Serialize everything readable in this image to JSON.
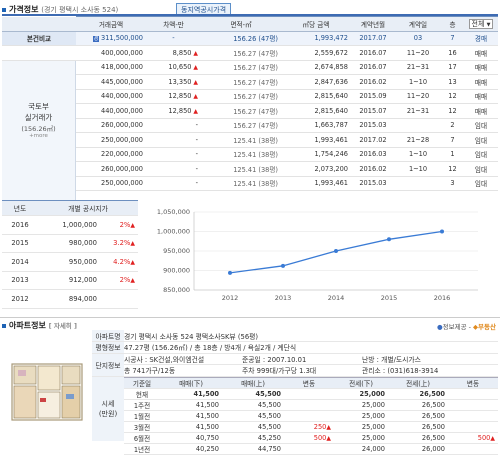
{
  "price_section": {
    "title": "가격정보",
    "location": "(경기 평택시 소사동 524)",
    "compare_button": "동지역공시가격",
    "dropdown": "전체",
    "dropdown_arrow": "▼",
    "headers": [
      "거래금액",
      "차액-만",
      "면적-㎡",
      "㎡당 금액",
      "계약년월",
      "계약일",
      "층",
      "전체"
    ],
    "compare_label": "본건비교",
    "compare_row": {
      "price": "311,500,000",
      "diff": "-",
      "area": "156.26 (47평)",
      "per_m2": "1,993,472",
      "ym": "2017.07",
      "day": "03",
      "floor": "7",
      "type": "경매"
    },
    "left_label": "국토부\n실거래가",
    "left_sub": "(156.26㎡)",
    "more": "+more",
    "rows": [
      {
        "price": "400,000,000",
        "diff": "8,850",
        "up": true,
        "area": "156.27 (47평)",
        "per_m2": "2,559,672",
        "ym": "2016.07",
        "day": "11~20",
        "floor": "16",
        "type": "매매"
      },
      {
        "price": "418,000,000",
        "diff": "10,650",
        "up": true,
        "area": "156.27 (47평)",
        "per_m2": "2,674,858",
        "ym": "2016.07",
        "day": "21~31",
        "floor": "17",
        "type": "매매"
      },
      {
        "price": "445,000,000",
        "diff": "13,350",
        "up": true,
        "area": "156.27 (47평)",
        "per_m2": "2,847,636",
        "ym": "2016.02",
        "day": "1~10",
        "floor": "13",
        "type": "매매"
      },
      {
        "price": "440,000,000",
        "diff": "12,850",
        "up": true,
        "area": "156.27 (47평)",
        "per_m2": "2,815,640",
        "ym": "2015.09",
        "day": "11~20",
        "floor": "12",
        "type": "매매"
      },
      {
        "price": "440,000,000",
        "diff": "12,850",
        "up": true,
        "area": "156.27 (47평)",
        "per_m2": "2,815,640",
        "ym": "2015.07",
        "day": "21~31",
        "floor": "12",
        "type": "매매"
      },
      {
        "price": "260,000,000",
        "diff": "-",
        "up": false,
        "area": "156.27 (47평)",
        "per_m2": "1,663,787",
        "ym": "2015.03",
        "day": "",
        "floor": "2",
        "type": "임대"
      },
      {
        "price": "250,000,000",
        "diff": "-",
        "up": false,
        "area": "125.41 (38평)",
        "per_m2": "1,993,461",
        "ym": "2017.02",
        "day": "21~28",
        "floor": "7",
        "type": "임대"
      },
      {
        "price": "220,000,000",
        "diff": "-",
        "up": false,
        "area": "125.41 (38평)",
        "per_m2": "1,754,246",
        "ym": "2016.03",
        "day": "1~10",
        "floor": "1",
        "type": "임대"
      },
      {
        "price": "260,000,000",
        "diff": "-",
        "up": false,
        "area": "125.41 (38평)",
        "per_m2": "2,073,200",
        "ym": "2016.02",
        "day": "1~10",
        "floor": "12",
        "type": "임대"
      },
      {
        "price": "250,000,000",
        "diff": "-",
        "up": false,
        "area": "125.41 (38평)",
        "per_m2": "1,993,461",
        "ym": "2015.03",
        "day": "",
        "floor": "3",
        "type": "임대"
      }
    ]
  },
  "public_price": {
    "headers": [
      "년도",
      "개별 공시지가"
    ],
    "rows": [
      {
        "year": "2016",
        "price": "1,000,000",
        "pct": "2%",
        "up": true
      },
      {
        "year": "2015",
        "price": "980,000",
        "pct": "3.2%",
        "up": true
      },
      {
        "year": "2014",
        "price": "950,000",
        "pct": "4.2%",
        "up": true
      },
      {
        "year": "2013",
        "price": "912,000",
        "pct": "2%",
        "up": true
      },
      {
        "year": "2012",
        "price": "894,000",
        "pct": "",
        "up": false
      }
    ]
  },
  "chart_data": {
    "type": "line",
    "x": [
      "2012",
      "2013",
      "2014",
      "2015",
      "2016"
    ],
    "values": [
      894000,
      912000,
      950000,
      980000,
      1000000
    ],
    "ylim": [
      850000,
      1050000
    ],
    "yticks": [
      "1,050,000",
      "1,000,000",
      "950,000",
      "900,000",
      "850,000"
    ],
    "ytick_values": [
      1050000,
      1000000,
      950000,
      900000,
      850000
    ],
    "grid": true,
    "line_color": "#3a7bd5"
  },
  "apt_section": {
    "title": "아파트정보",
    "detail_link": "[ 자세히 ]",
    "provider_prefix": "정보제공 -",
    "provider": "부동산",
    "name_label": "아파트명",
    "name_value": "경기 평택시 소사동 524 평택소사SK뷰 (56평)",
    "area_label": "평형정보",
    "area_value": "47.27평 (156.26㎡) / 총 18층 / 방4개 / 욕실2개 / 계단식",
    "complex_label": "단지정보",
    "builder": "시공사 : SK건설,와이엠건설",
    "completed": "준공일 : 2007.10.01",
    "heating": "난방 : 개별/도시가스",
    "households": "총 741가구/12동",
    "parking": "주차 999대/가구당 1.3대",
    "office": "관리소 : (031)618-3914",
    "market_label": "시세\n(만원)",
    "trade_headers": [
      "기준일",
      "매매(下)",
      "매매(上)",
      "변동",
      "전세(下)",
      "전세(上)",
      "변동"
    ],
    "trade_rows": [
      {
        "date": "현재",
        "s_low": "41,500",
        "s_high": "45,500",
        "s_chg": "",
        "j_low": "25,000",
        "j_high": "26,500",
        "j_chg": "",
        "bold": true
      },
      {
        "date": "1주전",
        "s_low": "41,500",
        "s_high": "45,500",
        "s_chg": "",
        "j_low": "25,000",
        "j_high": "26,500",
        "j_chg": ""
      },
      {
        "date": "1월전",
        "s_low": "41,500",
        "s_high": "45,500",
        "s_chg": "",
        "j_low": "25,000",
        "j_high": "26,500",
        "j_chg": ""
      },
      {
        "date": "3월전",
        "s_low": "41,500",
        "s_high": "45,500",
        "s_chg": "250",
        "j_low": "25,000",
        "j_high": "26,500",
        "j_chg": ""
      },
      {
        "date": "6월전",
        "s_low": "40,750",
        "s_high": "45,250",
        "s_chg": "500",
        "j_low": "25,000",
        "j_high": "26,500",
        "j_chg": "500"
      },
      {
        "date": "1년전",
        "s_low": "40,250",
        "s_high": "44,750",
        "s_chg": "",
        "j_low": "24,000",
        "j_high": "26,000",
        "j_chg": ""
      }
    ]
  }
}
